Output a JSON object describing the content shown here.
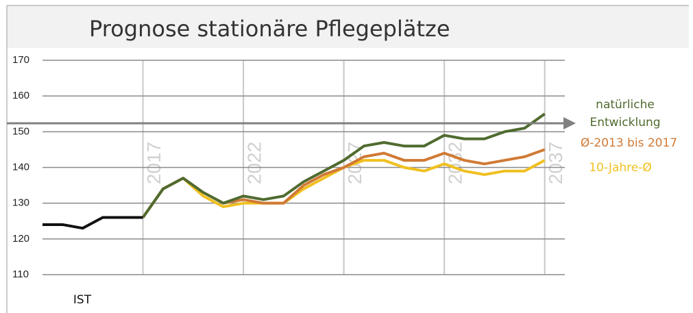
{
  "chart_data": {
    "type": "line",
    "title": "Prognose stationäre Pflegeplätze",
    "xlim": [
      2012,
      2038
    ],
    "xticks": [
      2017,
      2022,
      2027,
      2032,
      2037
    ],
    "ylim": [
      110,
      170
    ],
    "yticks": [
      110,
      120,
      130,
      140,
      150,
      160,
      170
    ],
    "grid": true,
    "series": [
      {
        "name": "IST",
        "color": "#111111",
        "x": [
          2012,
          2013,
          2014,
          2015,
          2016,
          2017
        ],
        "values": [
          124,
          124,
          123,
          126,
          126,
          126
        ]
      },
      {
        "name": "natürliche Entwicklung",
        "color": "#4f6b2f",
        "x": [
          2017,
          2018,
          2019,
          2020,
          2021,
          2022,
          2023,
          2024,
          2025,
          2026,
          2027,
          2028,
          2029,
          2030,
          2031,
          2032,
          2033,
          2034,
          2035,
          2036,
          2037
        ],
        "values": [
          126,
          134,
          137,
          133,
          130,
          132,
          131,
          132,
          136,
          139,
          142,
          146,
          147,
          146,
          146,
          149,
          148,
          148,
          150,
          151,
          155
        ]
      },
      {
        "name": "Ø-2013 bis 2017",
        "color": "#d07a35",
        "x": [
          2017,
          2018,
          2019,
          2020,
          2021,
          2022,
          2023,
          2024,
          2025,
          2026,
          2027,
          2028,
          2029,
          2030,
          2031,
          2032,
          2033,
          2034,
          2035,
          2036,
          2037
        ],
        "values": [
          126,
          134,
          137,
          133,
          130,
          131,
          130,
          130,
          135,
          138,
          140,
          143,
          144,
          142,
          142,
          144,
          142,
          141,
          142,
          143,
          145
        ]
      },
      {
        "name": "10-Jahre-Ø",
        "color": "#f0c020",
        "x": [
          2017,
          2018,
          2019,
          2020,
          2021,
          2022,
          2023,
          2024,
          2025,
          2026,
          2027,
          2028,
          2029,
          2030,
          2031,
          2032,
          2033,
          2034,
          2035,
          2036,
          2037
        ],
        "values": [
          126,
          134,
          137,
          132,
          129,
          130,
          130,
          130,
          134,
          137,
          140,
          142,
          142,
          140,
          139,
          141,
          139,
          138,
          139,
          139,
          142
        ]
      }
    ]
  }
}
